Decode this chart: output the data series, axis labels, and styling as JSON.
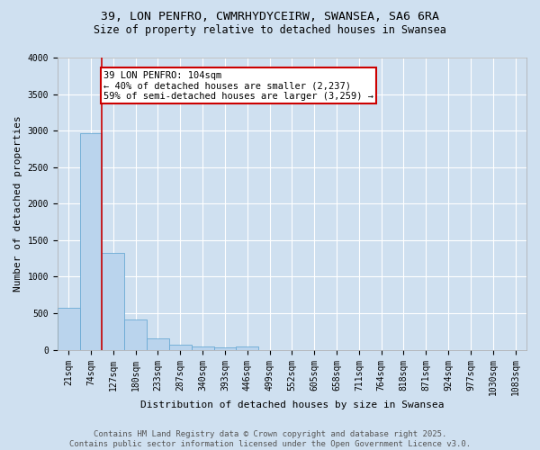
{
  "title_line1": "39, LON PENFRO, CWMRHYDYCEIRW, SWANSEA, SA6 6RA",
  "title_line2": "Size of property relative to detached houses in Swansea",
  "xlabel": "Distribution of detached houses by size in Swansea",
  "ylabel": "Number of detached properties",
  "categories": [
    "21sqm",
    "74sqm",
    "127sqm",
    "180sqm",
    "233sqm",
    "287sqm",
    "340sqm",
    "393sqm",
    "446sqm",
    "499sqm",
    "552sqm",
    "605sqm",
    "658sqm",
    "711sqm",
    "764sqm",
    "818sqm",
    "871sqm",
    "924sqm",
    "977sqm",
    "1030sqm",
    "1083sqm"
  ],
  "bar_heights": [
    580,
    2960,
    1330,
    420,
    160,
    70,
    40,
    30,
    50,
    0,
    0,
    0,
    0,
    0,
    0,
    0,
    0,
    0,
    0,
    0,
    0
  ],
  "bar_color": "#bad4ed",
  "bar_edge_color": "#6aaad4",
  "bg_color": "#cfe0f0",
  "red_line_color": "#cc0000",
  "red_line_x": 1.5,
  "annotation_text": "39 LON PENFRO: 104sqm\n← 40% of detached houses are smaller (2,237)\n59% of semi-detached houses are larger (3,259) →",
  "annotation_box_facecolor": "#ffffff",
  "annotation_border_color": "#cc0000",
  "ylim": [
    0,
    4000
  ],
  "yticks": [
    0,
    500,
    1000,
    1500,
    2000,
    2500,
    3000,
    3500,
    4000
  ],
  "title_fontsize": 9.5,
  "subtitle_fontsize": 8.5,
  "axis_label_fontsize": 8,
  "tick_fontsize": 7,
  "annotation_fontsize": 7.5,
  "footer_fontsize": 6.5,
  "footer_line1": "Contains HM Land Registry data © Crown copyright and database right 2025.",
  "footer_line2": "Contains public sector information licensed under the Open Government Licence v3.0."
}
